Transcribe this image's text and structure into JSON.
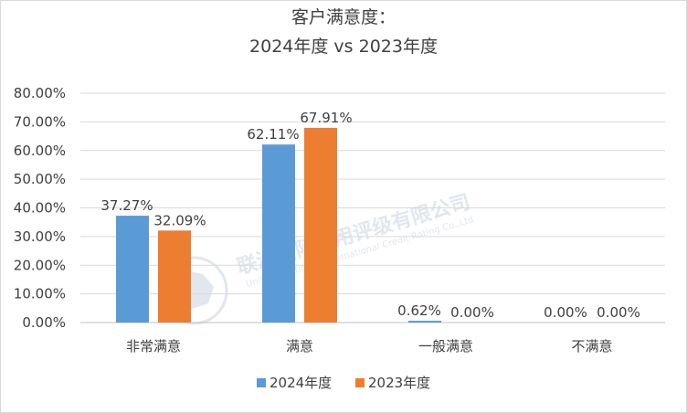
{
  "chart_data": {
    "type": "bar",
    "title": [
      "客户满意度：",
      "2024年度 vs 2023年度"
    ],
    "categories": [
      "非常满意",
      "满意",
      "一般满意",
      "不满意"
    ],
    "series": [
      {
        "name": "2024年度",
        "color": "#5b9bd5",
        "values": [
          37.27,
          62.11,
          0.62,
          0.0
        ],
        "labels": [
          "37.27%",
          "62.11%",
          "0.62%",
          "0.00%"
        ]
      },
      {
        "name": "2023年度",
        "color": "#ed7d31",
        "values": [
          32.09,
          67.91,
          0.0,
          0.0
        ],
        "labels": [
          "32.09%",
          "67.91%",
          "0.00%",
          "0.00%"
        ]
      }
    ],
    "yticks": [
      "0.00%",
      "10.00%",
      "20.00%",
      "30.00%",
      "40.00%",
      "50.00%",
      "60.00%",
      "70.00%",
      "80.00%"
    ],
    "ylim": [
      0,
      80
    ],
    "unit": "%",
    "grid": true,
    "legend_position": "bottom"
  },
  "watermark": {
    "text": "联洲国际信用评级有限公司",
    "subtext": "United Continent International Credit Rating Co.,Ltd"
  }
}
